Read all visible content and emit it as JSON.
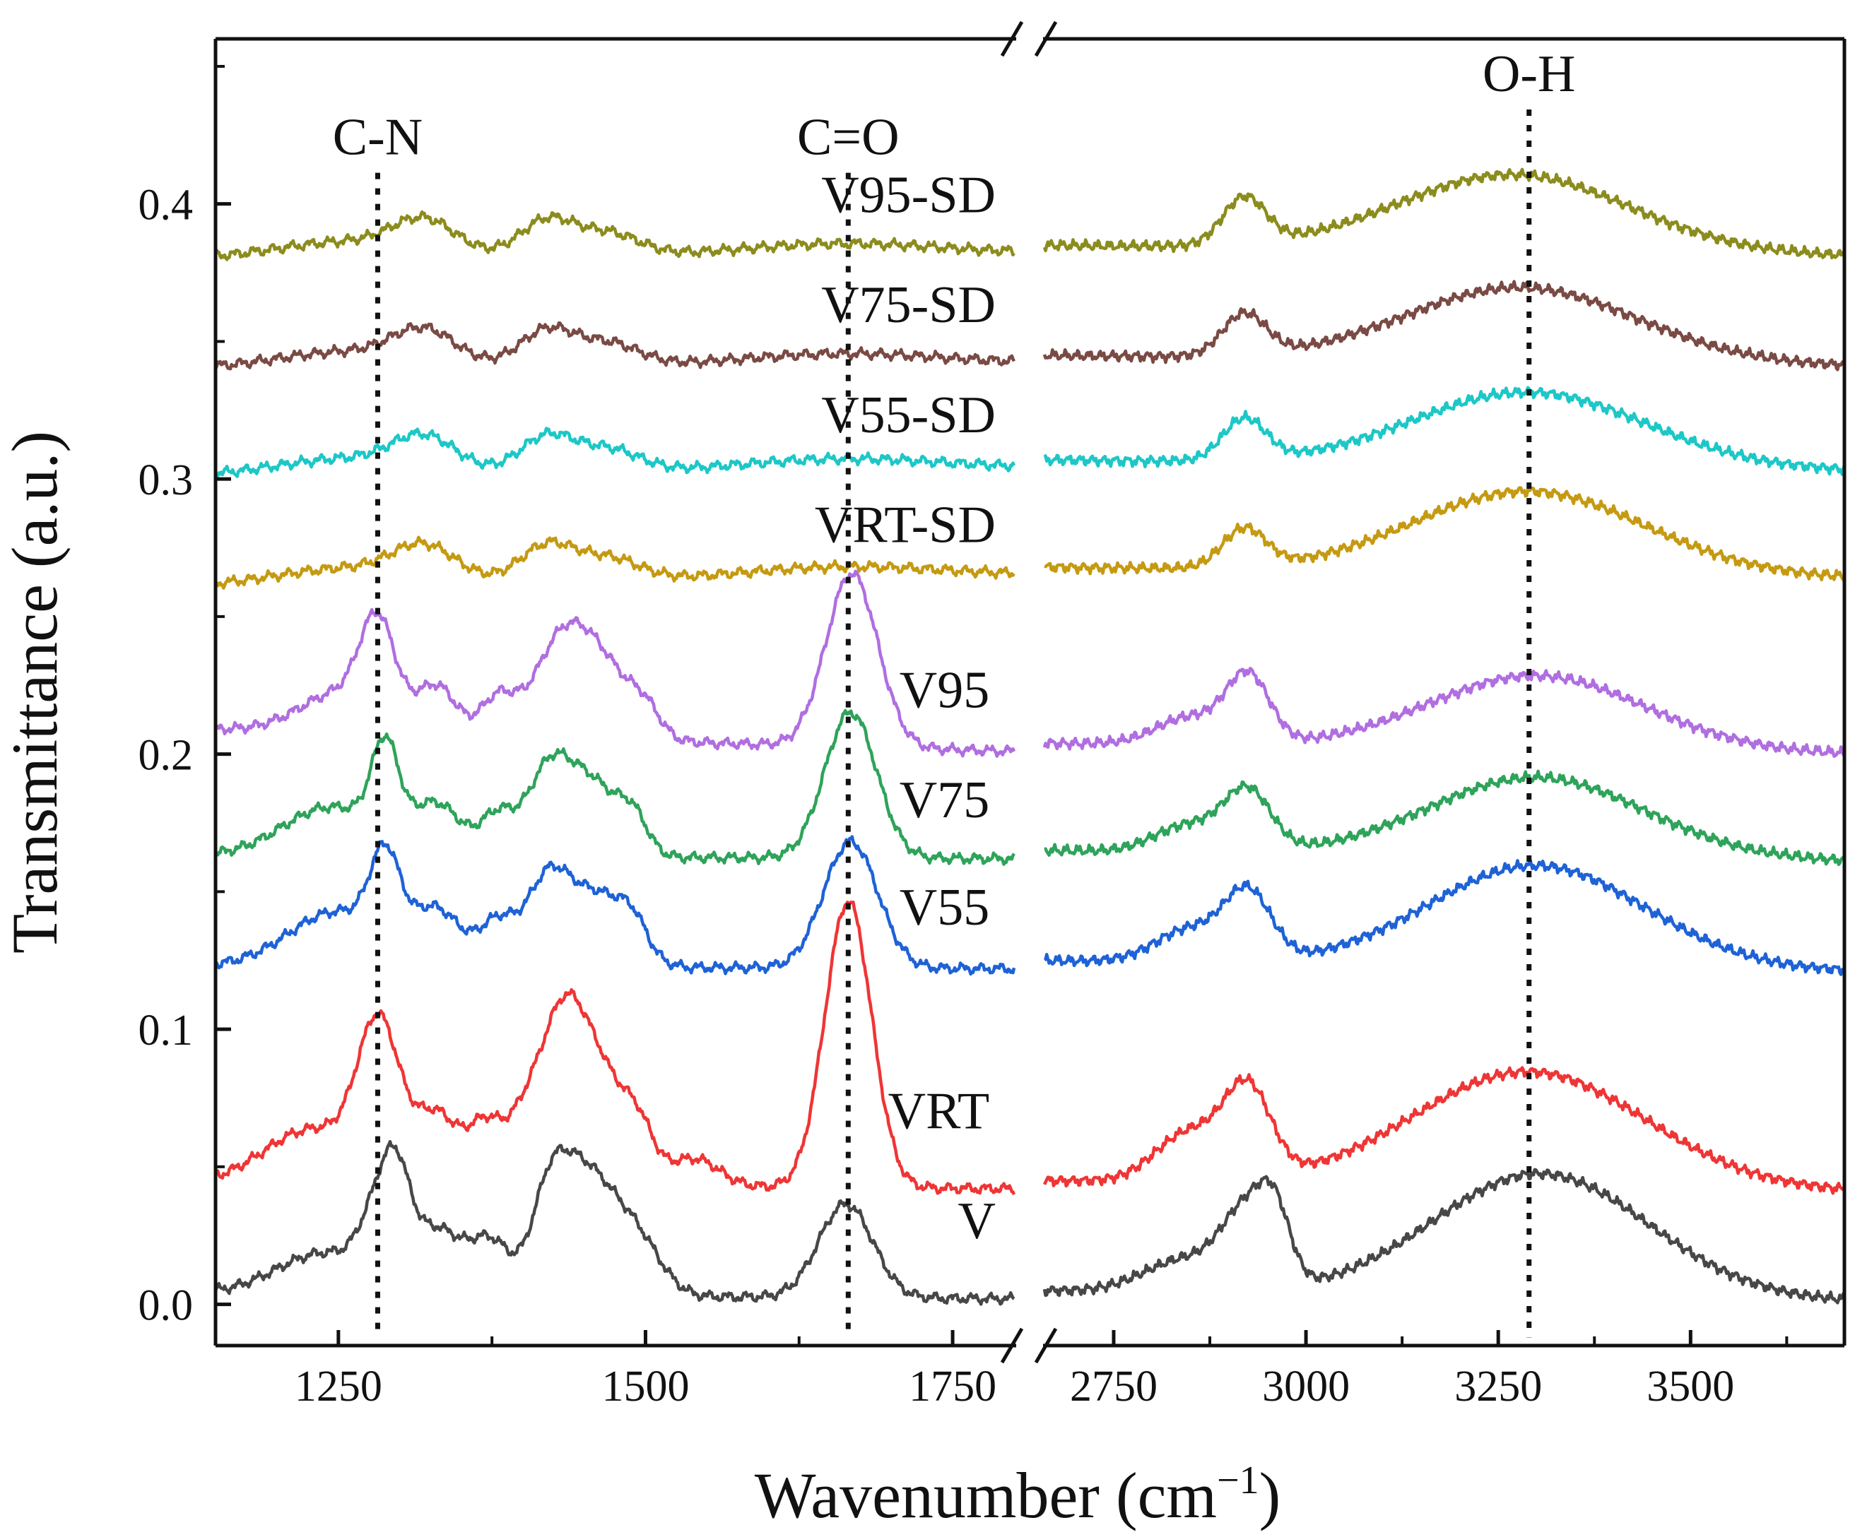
{
  "chart_data": {
    "type": "line",
    "title": "",
    "xlabel": "Wavenumber (cm",
    "xlabel_sup": "−1",
    "xlabel_close": ")",
    "ylabel": "Transmittance (a.u.)",
    "x_segments": [
      {
        "range": [
          1150,
          1800
        ],
        "ticks": [
          1250,
          1500,
          1750
        ],
        "tick_labels": [
          "1250",
          "1500",
          "1750"
        ]
      },
      {
        "range": [
          2660,
          3700
        ],
        "ticks": [
          2750,
          3000,
          3250,
          3500
        ],
        "tick_labels": [
          "2750",
          "3000",
          "3250",
          "3500"
        ]
      }
    ],
    "axis_break": "//",
    "ylim": [
      -0.015,
      0.46
    ],
    "yticks": [
      0.0,
      0.1,
      0.2,
      0.3,
      0.4
    ],
    "ytick_labels": [
      "0.0",
      "0.1",
      "0.2",
      "0.3",
      "0.4"
    ],
    "yminor": [
      0.05,
      0.15,
      0.25,
      0.35,
      0.45
    ],
    "grid": false,
    "annotations": [
      {
        "label": "C-N",
        "x": 1282,
        "label_y": 0.418
      },
      {
        "label": "C=O",
        "x": 1665,
        "label_y": 0.418
      },
      {
        "label": "O-H",
        "x": 3290,
        "label_y": 0.441
      }
    ],
    "series": [
      {
        "name": "V",
        "color": "#474747",
        "offset": 0.0,
        "label_at": [
          1785,
          0.024
        ],
        "start": [
          0.004,
          0.002
        ],
        "peaks_left": [
          [
            1240,
            0.015,
            40
          ],
          [
            1283,
            0.024,
            14
          ],
          [
            1298,
            0.026,
            11
          ],
          [
            1330,
            0.023,
            22
          ],
          [
            1375,
            0.018,
            16
          ],
          [
            1420,
            0.024,
            14
          ],
          [
            1440,
            0.031,
            20
          ],
          [
            1470,
            0.028,
            24
          ],
          [
            1500,
            0.009,
            18
          ],
          [
            1663,
            0.034,
            22
          ]
        ],
        "peaks_right": [
          [
            2845,
            0.012,
            55
          ],
          [
            2925,
            0.027,
            32
          ],
          [
            2960,
            0.02,
            20
          ],
          [
            3305,
            0.045,
            140
          ]
        ]
      },
      {
        "name": "VRT",
        "color": "#ef3535",
        "offset": 0.04,
        "label_at": [
          1780,
          0.064
        ],
        "start": [
          0.004,
          0.002
        ],
        "peaks_left": [
          [
            1230,
            0.02,
            40
          ],
          [
            1283,
            0.053,
            17
          ],
          [
            1330,
            0.025,
            18
          ],
          [
            1370,
            0.021,
            14
          ],
          [
            1400,
            0.018,
            14
          ],
          [
            1430,
            0.045,
            18
          ],
          [
            1460,
            0.042,
            25
          ],
          [
            1495,
            0.012,
            12
          ],
          [
            1540,
            0.01,
            20
          ],
          [
            1665,
            0.104,
            19
          ]
        ],
        "peaks_right": [
          [
            2850,
            0.018,
            45
          ],
          [
            2925,
            0.031,
            30
          ],
          [
            3290,
            0.042,
            150
          ]
        ]
      },
      {
        "name": "V55",
        "color": "#1e62d6",
        "offset": 0.12,
        "label_at": [
          1780,
          0.138
        ],
        "start": [
          0.003,
          0.002
        ],
        "peaks_left": [
          [
            1250,
            0.02,
            40
          ],
          [
            1288,
            0.03,
            12
          ],
          [
            1330,
            0.019,
            20
          ],
          [
            1380,
            0.016,
            15
          ],
          [
            1420,
            0.029,
            17
          ],
          [
            1460,
            0.026,
            24
          ],
          [
            1490,
            0.01,
            12
          ],
          [
            1667,
            0.046,
            22
          ]
        ],
        "peaks_right": [
          [
            2850,
            0.012,
            45
          ],
          [
            2925,
            0.024,
            30
          ],
          [
            3300,
            0.037,
            140
          ]
        ]
      },
      {
        "name": "V75",
        "color": "#2ea35a",
        "offset": 0.16,
        "label_at": [
          1780,
          0.177
        ],
        "start": [
          0.003,
          0.002
        ],
        "peaks_left": [
          [
            1245,
            0.018,
            40
          ],
          [
            1288,
            0.032,
            11
          ],
          [
            1330,
            0.018,
            20
          ],
          [
            1380,
            0.015,
            14
          ],
          [
            1420,
            0.028,
            17
          ],
          [
            1455,
            0.027,
            22
          ],
          [
            1490,
            0.012,
            12
          ],
          [
            1667,
            0.053,
            21
          ]
        ],
        "peaks_right": [
          [
            2850,
            0.01,
            45
          ],
          [
            2925,
            0.021,
            30
          ],
          [
            3300,
            0.029,
            140
          ]
        ]
      },
      {
        "name": "V95",
        "color": "#b06ee0",
        "offset": 0.2,
        "label_at": [
          1780,
          0.217
        ],
        "start": [
          0.009,
          0.001
        ],
        "peaks_left": [
          [
            1255,
            0.015,
            35
          ],
          [
            1282,
            0.033,
            14
          ],
          [
            1330,
            0.017,
            16
          ],
          [
            1380,
            0.014,
            14
          ],
          [
            1430,
            0.031,
            22
          ],
          [
            1465,
            0.025,
            24
          ],
          [
            1500,
            0.008,
            12
          ],
          [
            1668,
            0.063,
            21
          ]
        ],
        "peaks_right": [
          [
            2850,
            0.01,
            45
          ],
          [
            2925,
            0.024,
            28
          ],
          [
            3300,
            0.027,
            140
          ]
        ]
      },
      {
        "name": "VRT-SD",
        "color": "#c59a12",
        "offset": 0.262,
        "label_at": [
          1785,
          0.277
        ],
        "start": [
          -0.001,
          0.003
        ],
        "peaks_left": [
          [
            1260,
            0.006,
            60
          ],
          [
            1320,
            0.011,
            25
          ],
          [
            1420,
            0.013,
            22
          ],
          [
            1470,
            0.008,
            25
          ],
          [
            1660,
            0.004,
            80
          ]
        ],
        "peaks_right": [
          [
            2920,
            0.014,
            28
          ],
          [
            3290,
            0.03,
            150
          ]
        ]
      },
      {
        "name": "V55-SD",
        "color": "#1dc7c7",
        "offset": 0.302,
        "label_at": [
          1785,
          0.317
        ],
        "start": [
          -0.001,
          0.002
        ],
        "peaks_left": [
          [
            1260,
            0.006,
            60
          ],
          [
            1320,
            0.011,
            25
          ],
          [
            1420,
            0.013,
            22
          ],
          [
            1470,
            0.008,
            25
          ],
          [
            1660,
            0.004,
            80
          ]
        ],
        "peaks_right": [
          [
            2920,
            0.015,
            28
          ],
          [
            3290,
            0.027,
            150
          ]
        ]
      },
      {
        "name": "V75-SD",
        "color": "#7a4a44",
        "offset": 0.342,
        "label_at": [
          1785,
          0.357
        ],
        "start": [
          -0.002,
          0.0
        ],
        "peaks_left": [
          [
            1260,
            0.006,
            60
          ],
          [
            1320,
            0.011,
            25
          ],
          [
            1420,
            0.013,
            22
          ],
          [
            1470,
            0.008,
            25
          ],
          [
            1660,
            0.004,
            80
          ]
        ],
        "peaks_right": [
          [
            2920,
            0.015,
            28
          ],
          [
            3280,
            0.027,
            150
          ]
        ]
      },
      {
        "name": "V95-SD",
        "color": "#8c8c1e",
        "offset": 0.382,
        "label_at": [
          1785,
          0.397
        ],
        "start": [
          -0.002,
          0.0
        ],
        "peaks_left": [
          [
            1260,
            0.006,
            60
          ],
          [
            1320,
            0.011,
            25
          ],
          [
            1420,
            0.013,
            22
          ],
          [
            1470,
            0.008,
            25
          ],
          [
            1660,
            0.004,
            80
          ]
        ],
        "peaks_right": [
          [
            2920,
            0.017,
            28
          ],
          [
            3270,
            0.028,
            150
          ]
        ]
      }
    ]
  }
}
